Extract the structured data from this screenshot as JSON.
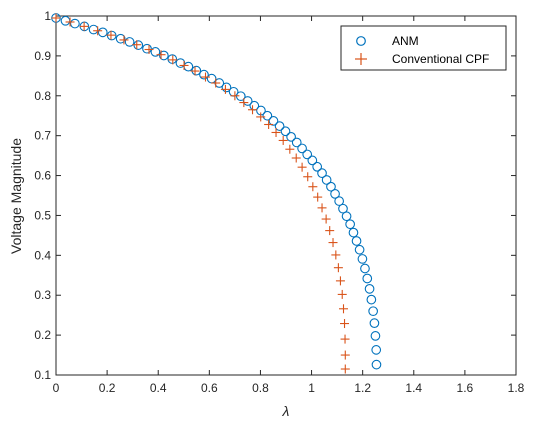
{
  "chart_data": {
    "type": "scatter",
    "title": "",
    "xlabel": "λ",
    "ylabel": "Voltage Magnitude",
    "xlim": [
      0,
      1.8
    ],
    "ylim": [
      0.1,
      1.0
    ],
    "xticks": [
      "0",
      "0.2",
      "0.4",
      "0.6",
      "0.8",
      "1",
      "1.2",
      "1.4",
      "1.6",
      "1.8"
    ],
    "yticks": [
      "0.1",
      "0.2",
      "0.3",
      "0.4",
      "0.5",
      "0.6",
      "0.7",
      "0.8",
      "0.9",
      "1"
    ],
    "grid": false,
    "legend_position": "top-right",
    "colors": {
      "anm": "#0072BD",
      "cpf": "#D95319",
      "axis": "#262626"
    },
    "series": [
      {
        "name": "ANM",
        "marker": "circle",
        "points": [
          [
            0.0,
            0.995
          ],
          [
            0.037,
            0.988
          ],
          [
            0.074,
            0.981
          ],
          [
            0.111,
            0.974
          ],
          [
            0.147,
            0.966
          ],
          [
            0.183,
            0.959
          ],
          [
            0.218,
            0.951
          ],
          [
            0.253,
            0.943
          ],
          [
            0.288,
            0.935
          ],
          [
            0.322,
            0.927
          ],
          [
            0.356,
            0.918
          ],
          [
            0.389,
            0.91
          ],
          [
            0.422,
            0.901
          ],
          [
            0.455,
            0.892
          ],
          [
            0.487,
            0.882
          ],
          [
            0.518,
            0.873
          ],
          [
            0.549,
            0.863
          ],
          [
            0.579,
            0.853
          ],
          [
            0.609,
            0.843
          ],
          [
            0.639,
            0.832
          ],
          [
            0.667,
            0.821
          ],
          [
            0.695,
            0.81
          ],
          [
            0.723,
            0.799
          ],
          [
            0.75,
            0.787
          ],
          [
            0.776,
            0.775
          ],
          [
            0.802,
            0.763
          ],
          [
            0.827,
            0.75
          ],
          [
            0.851,
            0.737
          ],
          [
            0.875,
            0.724
          ],
          [
            0.898,
            0.711
          ],
          [
            0.92,
            0.697
          ],
          [
            0.942,
            0.683
          ],
          [
            0.963,
            0.668
          ],
          [
            0.983,
            0.653
          ],
          [
            1.003,
            0.638
          ],
          [
            1.022,
            0.622
          ],
          [
            1.041,
            0.606
          ],
          [
            1.059,
            0.589
          ],
          [
            1.076,
            0.572
          ],
          [
            1.092,
            0.554
          ],
          [
            1.108,
            0.536
          ],
          [
            1.123,
            0.517
          ],
          [
            1.137,
            0.498
          ],
          [
            1.151,
            0.478
          ],
          [
            1.164,
            0.457
          ],
          [
            1.176,
            0.436
          ],
          [
            1.188,
            0.414
          ],
          [
            1.199,
            0.391
          ],
          [
            1.209,
            0.367
          ],
          [
            1.218,
            0.342
          ],
          [
            1.227,
            0.316
          ],
          [
            1.234,
            0.289
          ],
          [
            1.241,
            0.26
          ],
          [
            1.246,
            0.23
          ],
          [
            1.25,
            0.198
          ],
          [
            1.253,
            0.163
          ],
          [
            1.254,
            0.126
          ]
        ]
      },
      {
        "name": "Conventional CPF",
        "marker": "plus",
        "points": [
          [
            0.0,
            0.995
          ],
          [
            0.055,
            0.985
          ],
          [
            0.11,
            0.974
          ],
          [
            0.163,
            0.963
          ],
          [
            0.215,
            0.952
          ],
          [
            0.266,
            0.94
          ],
          [
            0.316,
            0.928
          ],
          [
            0.364,
            0.916
          ],
          [
            0.411,
            0.903
          ],
          [
            0.457,
            0.89
          ],
          [
            0.501,
            0.876
          ],
          [
            0.544,
            0.862
          ],
          [
            0.585,
            0.847
          ],
          [
            0.625,
            0.832
          ],
          [
            0.663,
            0.816
          ],
          [
            0.7,
            0.8
          ],
          [
            0.735,
            0.783
          ],
          [
            0.769,
            0.765
          ],
          [
            0.801,
            0.747
          ],
          [
            0.832,
            0.728
          ],
          [
            0.861,
            0.708
          ],
          [
            0.889,
            0.688
          ],
          [
            0.915,
            0.666
          ],
          [
            0.94,
            0.644
          ],
          [
            0.963,
            0.621
          ],
          [
            0.985,
            0.597
          ],
          [
            1.005,
            0.572
          ],
          [
            1.024,
            0.546
          ],
          [
            1.041,
            0.519
          ],
          [
            1.057,
            0.491
          ],
          [
            1.071,
            0.462
          ],
          [
            1.084,
            0.432
          ],
          [
            1.095,
            0.401
          ],
          [
            1.105,
            0.369
          ],
          [
            1.113,
            0.336
          ],
          [
            1.12,
            0.302
          ],
          [
            1.125,
            0.266
          ],
          [
            1.129,
            0.229
          ],
          [
            1.131,
            0.19
          ],
          [
            1.132,
            0.15
          ],
          [
            1.132,
            0.115
          ]
        ]
      }
    ]
  }
}
